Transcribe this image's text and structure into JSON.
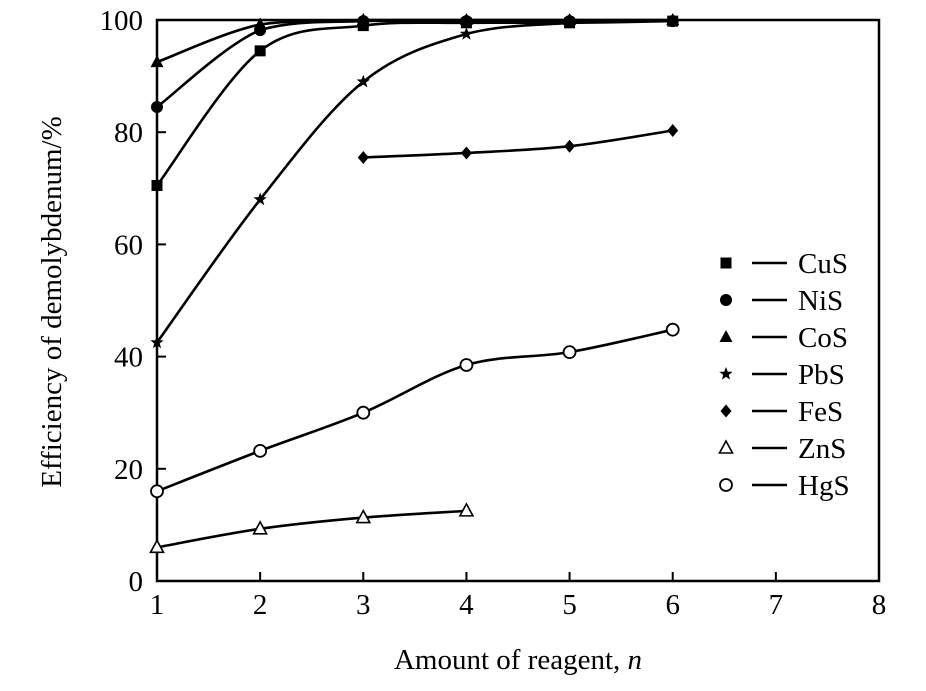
{
  "chart_data": {
    "type": "line",
    "title": "",
    "xlabel": "Amount of reagent, ",
    "xlabel_var": "n",
    "ylabel": "Efficiency of demolybdenum/%",
    "xlim": [
      1,
      8
    ],
    "ylim": [
      0,
      100
    ],
    "xticks": [
      "1",
      "2",
      "3",
      "4",
      "5",
      "6",
      "7",
      "8"
    ],
    "yticks": [
      "0",
      "20",
      "40",
      "60",
      "80",
      "100"
    ],
    "grid": false,
    "legend_position": "right",
    "series": [
      {
        "name": "CuS",
        "marker": "square-filled",
        "x": [
          1,
          2,
          3,
          4,
          5,
          6
        ],
        "values": [
          70.5,
          94.5,
          99,
          99.5,
          99.5,
          99.8
        ]
      },
      {
        "name": "NiS",
        "marker": "circle-filled",
        "x": [
          1,
          2,
          3,
          4,
          5,
          6
        ],
        "values": [
          84.5,
          98.2,
          99.8,
          99.8,
          99.8,
          99.8
        ]
      },
      {
        "name": "CoS",
        "marker": "triangle-filled",
        "x": [
          1,
          2,
          3,
          4,
          5,
          6
        ],
        "values": [
          92.5,
          99.2,
          100,
          100,
          100,
          100
        ]
      },
      {
        "name": "PbS",
        "marker": "star",
        "x": [
          1,
          2,
          3,
          4,
          5
        ],
        "values": [
          42.5,
          68,
          89,
          97.5,
          99.5
        ]
      },
      {
        "name": "FeS",
        "marker": "diamond-filled",
        "x": [
          3,
          4,
          5,
          6
        ],
        "values": [
          75.5,
          76.3,
          77.5,
          80.3
        ]
      },
      {
        "name": "ZnS",
        "marker": "triangle-open",
        "x": [
          1,
          2,
          3,
          4
        ],
        "values": [
          6,
          9.3,
          11.3,
          12.5
        ]
      },
      {
        "name": "HgS",
        "marker": "circle-open",
        "x": [
          1,
          2,
          3,
          4,
          5,
          6
        ],
        "values": [
          16,
          23.2,
          30,
          38.5,
          40.8,
          44.8
        ]
      }
    ]
  }
}
